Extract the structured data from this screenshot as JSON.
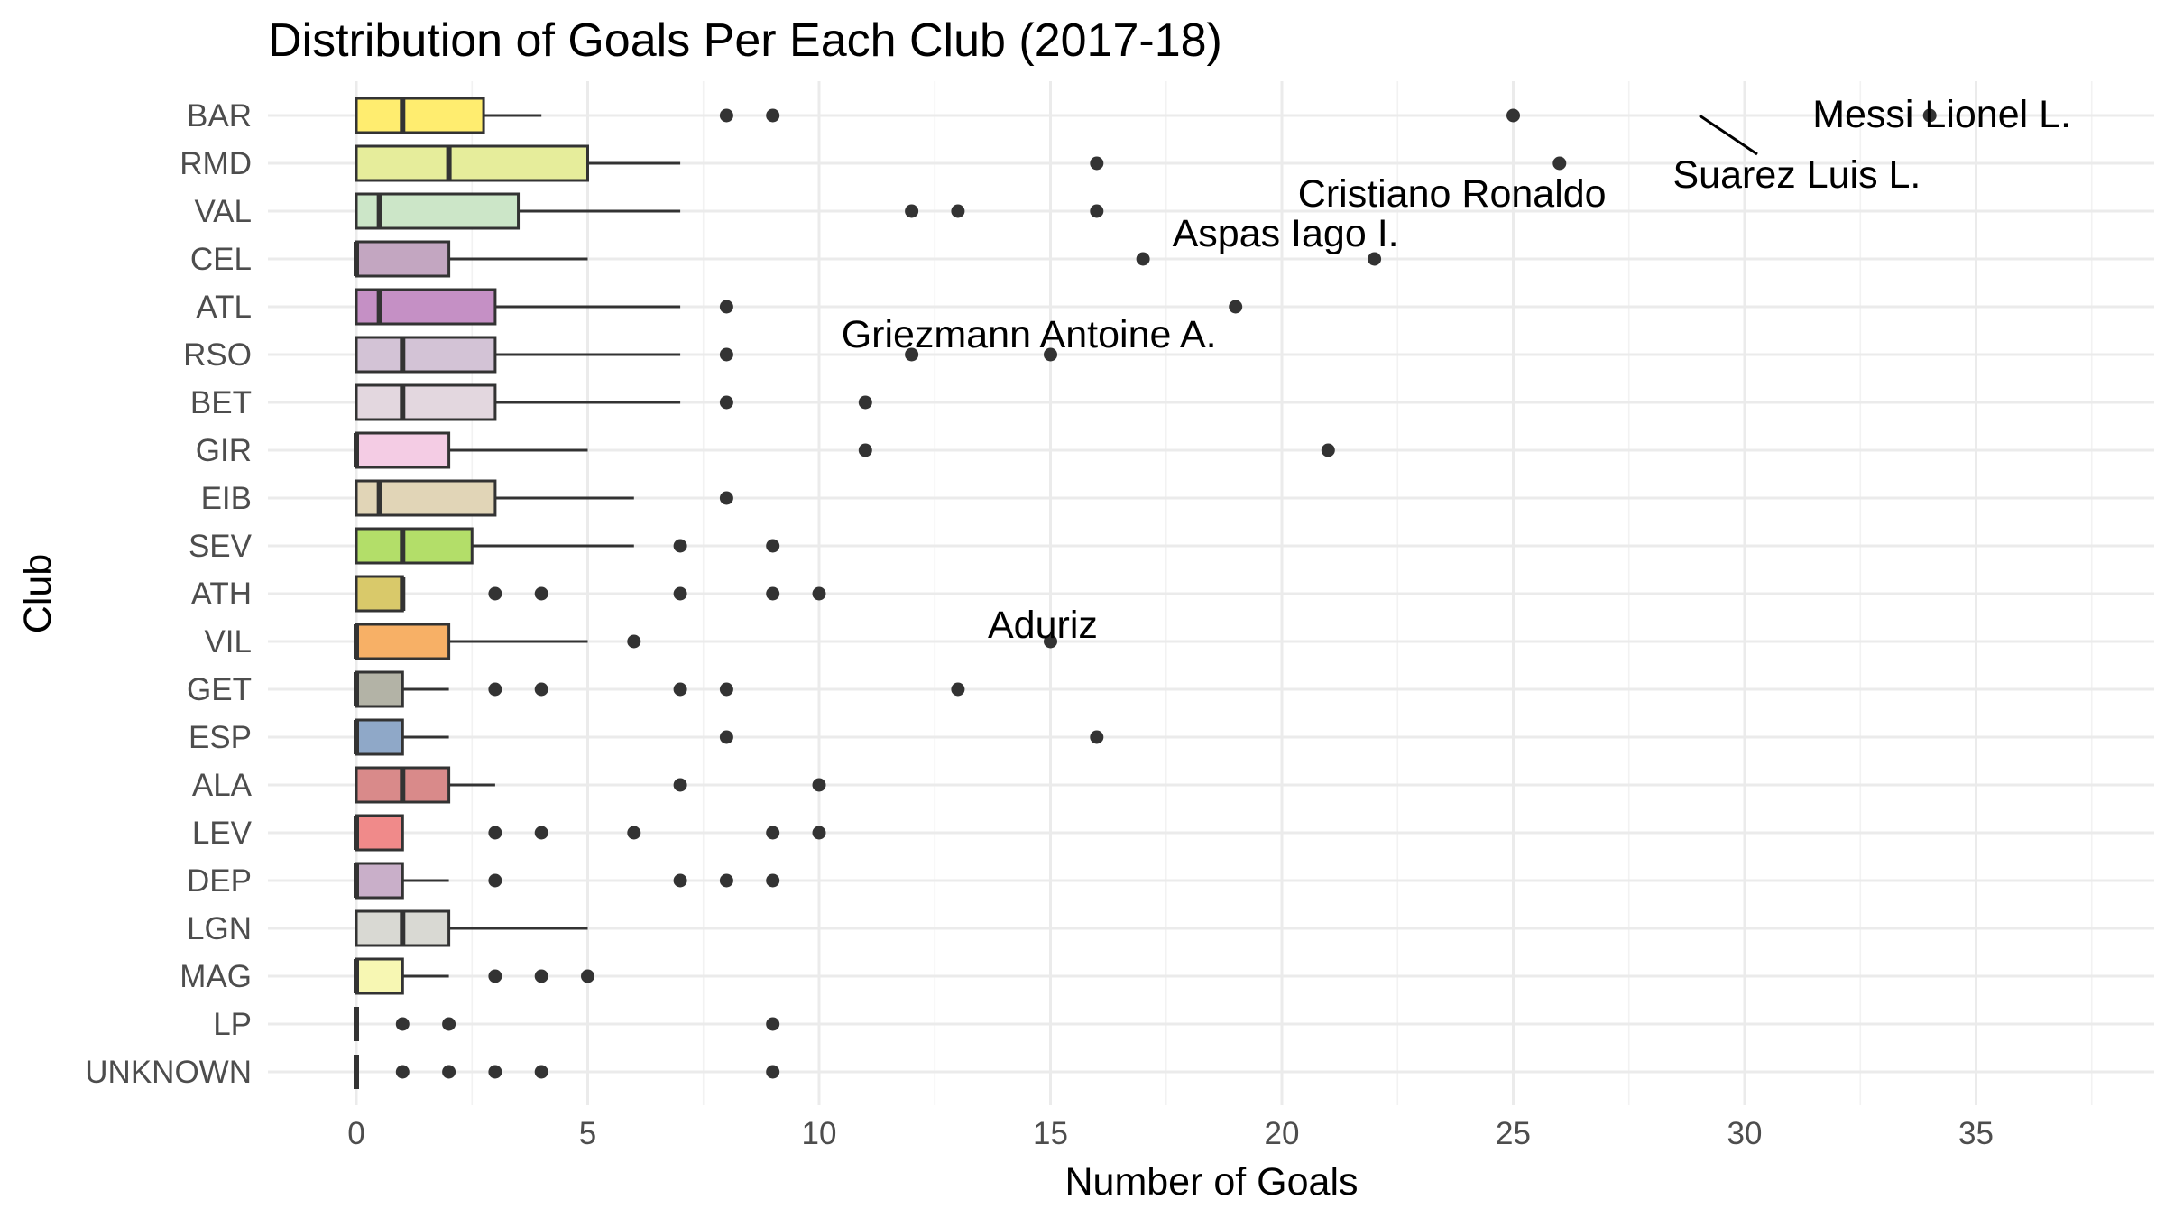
{
  "chart_data": {
    "type": "boxplot",
    "title": "Distribution of Goals Per Each Club (2017-18)",
    "xlabel": "Number of Goals",
    "ylabel": "Club",
    "xlim": [
      -1.8,
      38.2
    ],
    "x_ticks": [
      0,
      5,
      10,
      15,
      20,
      25,
      30,
      35
    ],
    "grid": true,
    "orientation": "horizontal",
    "categories": [
      "BAR",
      "RMD",
      "VAL",
      "CEL",
      "ATL",
      "RSO",
      "BET",
      "GIR",
      "EIB",
      "SEV",
      "ATH",
      "VIL",
      "GET",
      "ESP",
      "ALA",
      "LEV",
      "DEP",
      "LGN",
      "MAG",
      "LP",
      "UNKNOWN"
    ],
    "boxes": [
      {
        "club": "BAR",
        "color": "#FFED6F",
        "min": 0,
        "q1": 0,
        "median": 1,
        "q3": 2.75,
        "max": 4,
        "outliers": [
          8,
          9,
          25,
          34
        ]
      },
      {
        "club": "RMD",
        "color": "#E6ED9B",
        "min": 0,
        "q1": 0,
        "median": 2,
        "q3": 5,
        "max": 7,
        "outliers": [
          16,
          26
        ]
      },
      {
        "club": "VAL",
        "color": "#CCE6C8",
        "min": 0,
        "q1": 0,
        "median": 0.5,
        "q3": 3.5,
        "max": 7,
        "outliers": [
          12,
          13,
          16
        ]
      },
      {
        "club": "CEL",
        "color": "#C3A6C1",
        "min": 0,
        "q1": 0,
        "median": 0,
        "q3": 2,
        "max": 5,
        "outliers": [
          17,
          22
        ]
      },
      {
        "club": "ATL",
        "color": "#C590C5",
        "min": 0,
        "q1": 0,
        "median": 0.5,
        "q3": 3,
        "max": 7,
        "outliers": [
          8,
          19
        ]
      },
      {
        "club": "RSO",
        "color": "#D3C3D6",
        "min": 0,
        "q1": 0,
        "median": 1,
        "q3": 3,
        "max": 7,
        "outliers": [
          8,
          12,
          15
        ]
      },
      {
        "club": "BET",
        "color": "#E3D7DF",
        "min": 0,
        "q1": 0,
        "median": 1,
        "q3": 3,
        "max": 7,
        "outliers": [
          8,
          11
        ]
      },
      {
        "club": "GIR",
        "color": "#F4CCE4",
        "min": 0,
        "q1": 0,
        "median": 0,
        "q3": 2,
        "max": 5,
        "outliers": [
          11,
          21
        ]
      },
      {
        "club": "EIB",
        "color": "#E1D5B7",
        "min": 0,
        "q1": 0,
        "median": 0.5,
        "q3": 3,
        "max": 6,
        "outliers": [
          8
        ]
      },
      {
        "club": "SEV",
        "color": "#B3DE69",
        "min": 0,
        "q1": 0,
        "median": 1,
        "q3": 2.5,
        "max": 6,
        "outliers": [
          7,
          9
        ]
      },
      {
        "club": "ATH",
        "color": "#D9C96A",
        "min": 0,
        "q1": 0,
        "median": 1,
        "q3": 1,
        "max": 1,
        "outliers": [
          3,
          4,
          7,
          9,
          10
        ]
      },
      {
        "club": "VIL",
        "color": "#F7B066",
        "min": 0,
        "q1": 0,
        "median": 0,
        "q3": 2,
        "max": 5,
        "outliers": [
          6,
          15
        ]
      },
      {
        "club": "GET",
        "color": "#B3B3A6",
        "min": 0,
        "q1": 0,
        "median": 0,
        "q3": 1,
        "max": 2,
        "outliers": [
          3,
          4,
          7,
          8,
          13
        ]
      },
      {
        "club": "ESP",
        "color": "#8FA8C8",
        "min": 0,
        "q1": 0,
        "median": 0,
        "q3": 1,
        "max": 2,
        "outliers": [
          8,
          16
        ]
      },
      {
        "club": "ALA",
        "color": "#D98A8A",
        "min": 0,
        "q1": 0,
        "median": 1,
        "q3": 2,
        "max": 3,
        "outliers": [
          7,
          10
        ]
      },
      {
        "club": "LEV",
        "color": "#F08A8A",
        "min": 0,
        "q1": 0,
        "median": 0,
        "q3": 1,
        "max": 1,
        "outliers": [
          3,
          4,
          6,
          9,
          10
        ]
      },
      {
        "club": "DEP",
        "color": "#C9AFC9",
        "min": 0,
        "q1": 0,
        "median": 0,
        "q3": 1,
        "max": 2,
        "outliers": [
          3,
          7,
          8,
          9
        ]
      },
      {
        "club": "LGN",
        "color": "#D9D9D3",
        "min": 0,
        "q1": 0,
        "median": 1,
        "q3": 2,
        "max": 5,
        "outliers": []
      },
      {
        "club": "MAG",
        "color": "#F7F7B3",
        "min": 0,
        "q1": 0,
        "median": 0,
        "q3": 1,
        "max": 2,
        "outliers": [
          3,
          4,
          5
        ]
      },
      {
        "club": "LP",
        "color": "#D9D9D9",
        "min": 0,
        "q1": 0,
        "median": 0,
        "q3": 0,
        "max": 0,
        "outliers": [
          1,
          2,
          9
        ]
      },
      {
        "club": "UNKNOWN",
        "color": "#D9D9D9",
        "min": 0,
        "q1": 0,
        "median": 0,
        "q3": 0,
        "max": 0,
        "outliers": [
          1,
          2,
          3,
          4,
          9
        ]
      }
    ],
    "annotations": [
      {
        "text": "Messi Lionel L.",
        "club": "BAR",
        "x": 34
      },
      {
        "text": "Suarez Luis L.",
        "club": "BAR",
        "x": 25
      },
      {
        "text": "Cristiano Ronaldo",
        "club": "RMD",
        "x": 26
      },
      {
        "text": "Aspas Iago I.",
        "club": "CEL",
        "x": 22
      },
      {
        "text": "Griezmann Antoine A.",
        "club": "ATL",
        "x": 19
      },
      {
        "text": "Aduriz",
        "club": "ATH",
        "x": 10
      }
    ]
  }
}
